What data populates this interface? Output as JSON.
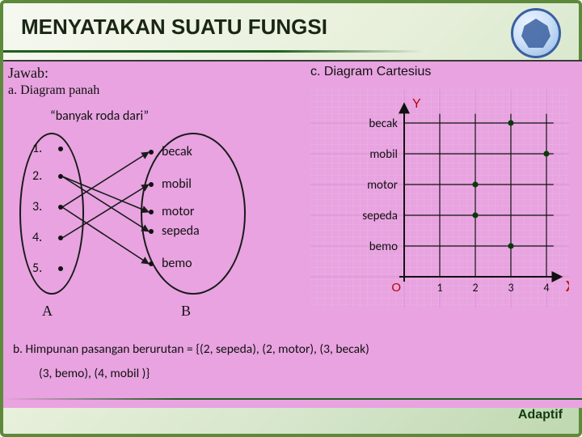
{
  "title": {
    "text": "MENYATAKAN SUATU FUNGSI",
    "fontsize": 26,
    "weight": 700,
    "color": "#1a2614"
  },
  "labels": {
    "jawab": "Jawab:",
    "sec_a": "a. Diagram panah",
    "sec_c": "c. Diagram Cartesius",
    "panah_title": "“banyak roda dari”",
    "setA": "A",
    "setB": "B",
    "axis_y": "Y",
    "axis_x": "X",
    "origin": "O",
    "pair_line1": "b. Himpunan pasangan berurutan = {(2, sepeda), (2, motor), (3, becak)",
    "pair_line2": "(3, bemo), (4, mobil )}",
    "footer": "Adaptif"
  },
  "panah": {
    "domain": [
      {
        "n": "1",
        "y": 48
      },
      {
        "n": "2",
        "y": 82
      },
      {
        "n": "3",
        "y": 120
      },
      {
        "n": "4",
        "y": 158
      },
      {
        "n": "5",
        "y": 196
      }
    ],
    "codomain": [
      {
        "name": "becak",
        "y": 52
      },
      {
        "name": "mobil",
        "y": 92
      },
      {
        "name": "motor",
        "y": 126
      },
      {
        "name": "sepeda",
        "y": 150
      },
      {
        "name": "bemo",
        "y": 190
      }
    ],
    "arrows": [
      {
        "from": 1,
        "to": 2
      },
      {
        "from": 1,
        "to": 3
      },
      {
        "from": 2,
        "to": 0
      },
      {
        "from": 2,
        "to": 4
      },
      {
        "from": 3,
        "to": 1
      }
    ],
    "arrow_color": "#1a1a1a",
    "arrow_width": 1.6
  },
  "cartesius": {
    "grid_color": "#e08fd6",
    "subgrid_color": "#e8b8e3",
    "axis_color": "#111111",
    "ylabels": [
      "becak",
      "mobil",
      "motor",
      "sepeda",
      "bemo"
    ],
    "ylevels": [
      5,
      4,
      3,
      2,
      1
    ],
    "xticks": [
      1,
      2,
      3,
      4
    ],
    "points": [
      {
        "x": 2,
        "yidx": 3
      },
      {
        "x": 2,
        "yidx": 2
      },
      {
        "x": 3,
        "yidx": 0
      },
      {
        "x": 3,
        "yidx": 4
      },
      {
        "x": 4,
        "yidx": 1
      }
    ],
    "point_color": "#0a3a0a",
    "point_r": 3.6,
    "origin_x": 116,
    "origin_y": 232,
    "step_x": 44,
    "step_y": 38,
    "xlim": [
      0,
      4.5
    ],
    "ylim": [
      0,
      5.5
    ],
    "label_fontsize": 15,
    "tick_fontsize": 14,
    "X_color": "#c01818"
  }
}
